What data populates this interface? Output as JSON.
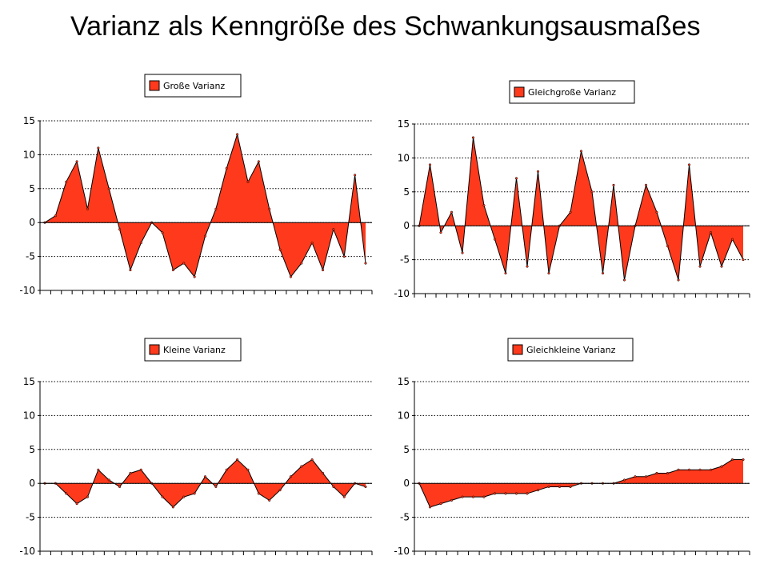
{
  "page_title": "Varianz als Kenngröße des Schwankungsausmaßes",
  "colors": {
    "fill": "#ff3a1c",
    "line": "#000000",
    "grid": "#000000"
  },
  "chart_data": [
    {
      "type": "area",
      "legend": "Große Varianz",
      "ylim": [
        -10,
        15
      ],
      "yticks": [
        "15",
        "10",
        "5",
        "0",
        "-5",
        "-10"
      ],
      "grid": true,
      "legend_placement": "top-center",
      "values": [
        0,
        1,
        6,
        9,
        2,
        11,
        5,
        -1,
        -7,
        -3,
        0,
        -1.5,
        -7,
        -6,
        -8,
        -2,
        2,
        8,
        13,
        6,
        9,
        2,
        -4,
        -8,
        -6,
        -3,
        -7,
        -1,
        -5,
        7,
        -6
      ]
    },
    {
      "type": "area",
      "legend": "Gleichgroße Varianz",
      "ylim": [
        -10,
        15
      ],
      "yticks": [
        "15",
        "10",
        "5",
        "0",
        "-5",
        "-10"
      ],
      "grid": true,
      "legend_placement": "top-center",
      "values": [
        0,
        9,
        -1,
        2,
        -4,
        13,
        3,
        -2,
        -7,
        7,
        -6,
        8,
        -7,
        0,
        2,
        11,
        5,
        -7,
        6,
        -8,
        0,
        6,
        2,
        -3,
        -8,
        9,
        -6,
        -1,
        -6,
        -2,
        -5
      ]
    },
    {
      "type": "area",
      "legend": "Kleine Varianz",
      "ylim": [
        -10,
        15
      ],
      "yticks": [
        "15",
        "10",
        "5",
        "0",
        "-5",
        "-10"
      ],
      "grid": true,
      "legend_placement": "top-center",
      "values": [
        0,
        0,
        -1.5,
        -3,
        -2,
        2,
        0.5,
        -0.5,
        1.5,
        2,
        0,
        -2,
        -3.5,
        -2,
        -1.5,
        1,
        -0.5,
        2,
        3.5,
        2,
        -1.5,
        -2.5,
        -1,
        1,
        2.5,
        3.5,
        1.5,
        -0.5,
        -2,
        0,
        -0.5
      ]
    },
    {
      "type": "area",
      "legend": "Gleichkleine Varianz",
      "ylim": [
        -10,
        15
      ],
      "yticks": [
        "15",
        "10",
        "5",
        "0",
        "-5",
        "-10"
      ],
      "grid": true,
      "legend_placement": "top-center",
      "values": [
        0,
        -3.5,
        -3,
        -2.5,
        -2,
        -2,
        -2,
        -1.5,
        -1.5,
        -1.5,
        -1.5,
        -1,
        -0.5,
        -0.5,
        -0.5,
        0,
        0,
        0,
        0,
        0.5,
        1,
        1,
        1.5,
        1.5,
        2,
        2,
        2,
        2,
        2.5,
        3.5,
        3.5
      ]
    }
  ]
}
